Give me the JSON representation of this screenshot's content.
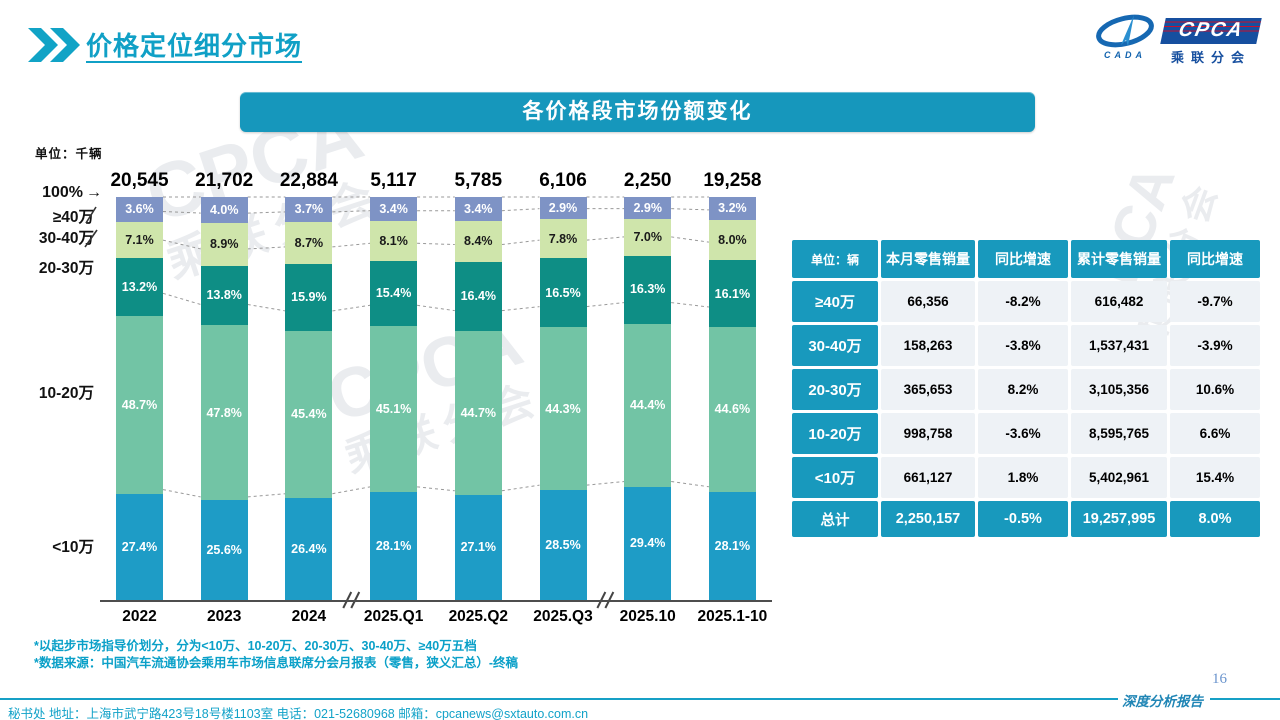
{
  "page": {
    "title": "价格定位细分市场",
    "page_number": "16",
    "report_label": "深度分析报告",
    "footer_contact": "秘书处  地址：上海市武宁路423号18号楼1103室  电话：021-52680968  邮箱：cpcanews@sxtauto.com.cn"
  },
  "logo": {
    "cada": "CADA",
    "cpca": "CPCA",
    "branch": "乘联分会"
  },
  "banner": {
    "title": "各价格段市场份额变化"
  },
  "chart": {
    "unit_label": "单位：千辆"
  },
  "icons": {
    "arrow_right": "→"
  },
  "chart_data": {
    "type": "bar",
    "variant": "stacked-100-percent",
    "title": "各价格段市场份额变化",
    "unit": "千辆",
    "grid": false,
    "legend_position": "left-axis",
    "categories": [
      "2022",
      "2023",
      "2024",
      "2025.Q1",
      "2025.Q2",
      "2025.Q3",
      "2025.10",
      "2025.1-10"
    ],
    "totals": [
      "20,545",
      "21,702",
      "22,884",
      "5,117",
      "5,785",
      "6,106",
      "2,250",
      "19,258"
    ],
    "series": [
      {
        "name": "≥40万",
        "color": "#7e93c5",
        "label_color": "#ffffff",
        "values": [
          3.6,
          4.0,
          3.7,
          3.4,
          3.4,
          2.9,
          2.9,
          3.2
        ]
      },
      {
        "name": "30-40万",
        "color": "#cfe5ab",
        "label_color": "#1a1a1a",
        "values": [
          7.1,
          8.9,
          8.7,
          8.1,
          8.4,
          7.8,
          7.0,
          8.0
        ]
      },
      {
        "name": "20-30万",
        "color": "#0e8e85",
        "label_color": "#ffffff",
        "values": [
          13.2,
          13.8,
          15.9,
          15.4,
          16.4,
          16.5,
          16.3,
          16.1
        ]
      },
      {
        "name": "10-20万",
        "color": "#72c4a5",
        "label_color": "#ffffff",
        "values": [
          48.7,
          47.8,
          45.4,
          45.1,
          44.7,
          44.3,
          44.4,
          44.6
        ]
      },
      {
        "name": "<10万",
        "color": "#1e9cc6",
        "label_color": "#ffffff",
        "values": [
          27.4,
          25.6,
          26.4,
          28.1,
          27.1,
          28.5,
          29.4,
          28.1
        ]
      }
    ],
    "y_axis_labels": [
      "100%",
      "≥40万",
      "30-40万",
      "20-30万",
      "10-20万",
      "<10万"
    ],
    "axis_breaks_after_category_index": [
      2,
      5
    ]
  },
  "table": {
    "unit_header": "单位：辆",
    "columns": [
      "本月零售销量",
      "同比增速",
      "累计零售销量",
      "同比增速"
    ],
    "rows": [
      {
        "label": "≥40万",
        "values": [
          "66,356",
          "-8.2%",
          "616,482",
          "-9.7%"
        ]
      },
      {
        "label": "30-40万",
        "values": [
          "158,263",
          "-3.8%",
          "1,537,431",
          "-3.9%"
        ]
      },
      {
        "label": "20-30万",
        "values": [
          "365,653",
          "8.2%",
          "3,105,356",
          "10.6%"
        ]
      },
      {
        "label": "10-20万",
        "values": [
          "998,758",
          "-3.6%",
          "8,595,765",
          "6.6%"
        ]
      },
      {
        "label": "<10万",
        "values": [
          "661,127",
          "1.8%",
          "5,402,961",
          "15.4%"
        ]
      }
    ],
    "total_row": {
      "label": "总计",
      "values": [
        "2,250,157",
        "-0.5%",
        "19,257,995",
        "8.0%"
      ]
    }
  },
  "footnotes": [
    "*以起步市场指导价划分，分为<10万、10-20万、20-30万、30-40万、≥40万五档",
    "*数据来源：中国汽车流通协会乘用车市场信息联席分会月报表（零售，狭义汇总）-终稿"
  ],
  "watermark": {
    "line1": "CPCA",
    "line2": "乘联分会"
  },
  "colors": {
    "theme_teal": "#1899bd",
    "banner_teal": "#1697bc",
    "segment_ge40": "#7e93c5",
    "segment_30_40": "#cfe5ab",
    "segment_20_30": "#0e8e85",
    "segment_10_20": "#72c4a5",
    "segment_lt10": "#1e9cc6",
    "connector_gray": "#999999"
  }
}
